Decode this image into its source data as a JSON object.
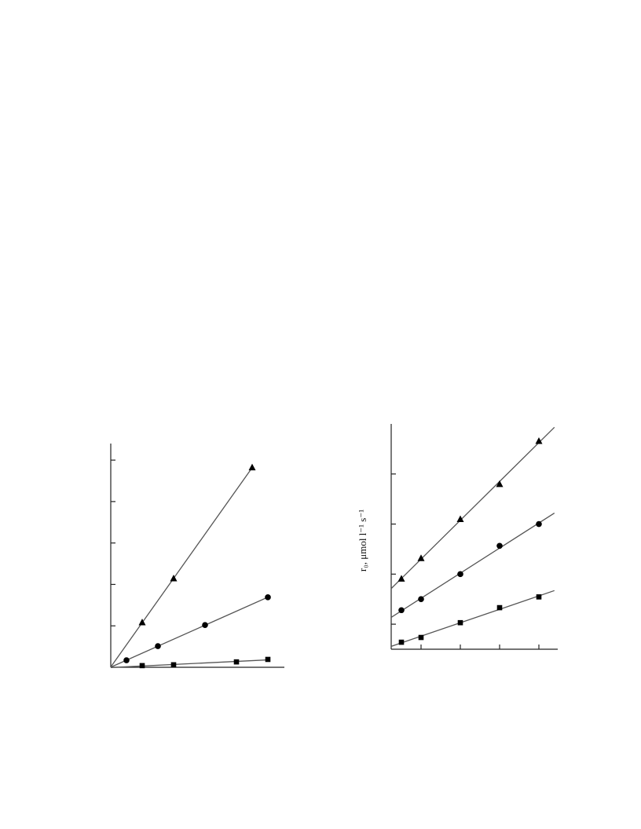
{
  "chart_data": [
    {
      "type": "scatter",
      "xlim": [
        0,
        5.525
      ],
      "ylim": [
        0,
        5.4
      ],
      "yticks": [
        1,
        2,
        3,
        4,
        5
      ],
      "series": [
        {
          "marker": "triangle",
          "color": "#000000",
          "x": [
            1,
            2,
            4.5
          ],
          "values": [
            1.08,
            2.14,
            4.82
          ]
        },
        {
          "marker": "circle",
          "color": "#000000",
          "x": [
            0.5,
            1.5,
            3,
            5
          ],
          "values": [
            0.17,
            0.51,
            1.02,
            1.69
          ]
        },
        {
          "marker": "square",
          "color": "#000000",
          "x": [
            1,
            2,
            4,
            5
          ],
          "values": [
            0.04,
            0.06,
            0.13,
            0.19
          ]
        }
      ]
    },
    {
      "type": "scatter",
      "y_label": "r₀, μmol l⁻¹ s⁻¹",
      "xlim": [
        0.24,
        4.48
      ],
      "ylim": [
        0,
        9
      ],
      "xticks": [
        1,
        2,
        3,
        4
      ],
      "yticks": [
        1,
        3,
        5,
        7
      ],
      "series": [
        {
          "marker": "triangle",
          "color": "#000000",
          "x": [
            0.5,
            1,
            2,
            3,
            4
          ],
          "values": [
            2.81,
            3.63,
            5.19,
            6.59,
            8.31
          ]
        },
        {
          "marker": "circle",
          "color": "#000000",
          "x": [
            0.5,
            1,
            2,
            3,
            4
          ],
          "values": [
            1.56,
            2.0,
            3.0,
            4.13,
            5.0
          ]
        },
        {
          "marker": "square",
          "color": "#000000",
          "x": [
            0.5,
            1,
            2,
            3,
            4
          ],
          "values": [
            0.28,
            0.47,
            1.06,
            1.66,
            2.09
          ]
        }
      ]
    }
  ]
}
